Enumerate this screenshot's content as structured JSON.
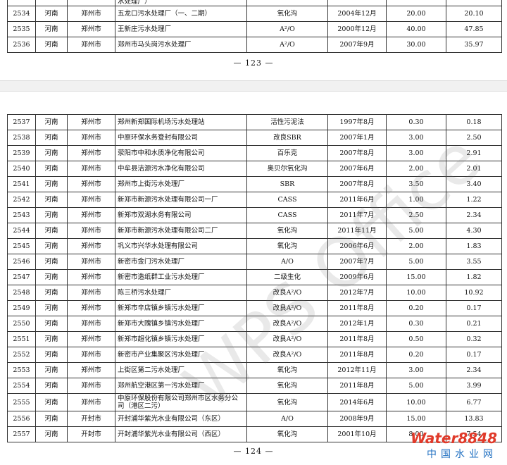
{
  "pages": [
    {
      "partial_row": {
        "name": "水处理厂）"
      },
      "rows": [
        [
          "2534",
          "河南",
          "郑州市",
          "五龙口污水处理厂（一、二期）",
          "氧化沟",
          "2004年12月",
          "20.00",
          "20.10"
        ],
        [
          "2535",
          "河南",
          "郑州市",
          "王新庄污水处理厂",
          "A²/O",
          "2000年12月",
          "40.00",
          "47.85"
        ],
        [
          "2536",
          "河南",
          "郑州市",
          "郑州市马头岗污水处理厂",
          "A²/O",
          "2007年9月",
          "30.00",
          "35.97"
        ]
      ],
      "page_number": "— 123 —"
    },
    {
      "rows": [
        [
          "2537",
          "河南",
          "郑州市",
          "郑州新郑国际机场污水处理站",
          "活性污泥法",
          "1997年8月",
          "0.30",
          "0.18"
        ],
        [
          "2538",
          "河南",
          "郑州市",
          "中原环保水务登封有限公司",
          "改良SBR",
          "2007年1月",
          "3.00",
          "2.50"
        ],
        [
          "2539",
          "河南",
          "郑州市",
          "荥阳市中和水质净化有限公司",
          "百乐克",
          "2007年8月",
          "3.00",
          "2.91"
        ],
        [
          "2540",
          "河南",
          "郑州市",
          "中牟县洁源污水净化有限公司",
          "奥贝尔氧化沟",
          "2007年6月",
          "2.00",
          "2.01"
        ],
        [
          "2541",
          "河南",
          "郑州市",
          "郑州市上街污水处理厂",
          "SBR",
          "2007年8月",
          "3.50",
          "3.40"
        ],
        [
          "2542",
          "河南",
          "郑州市",
          "新郑市新源污水处理有限公司一厂",
          "CASS",
          "2011年6月",
          "1.00",
          "1.22"
        ],
        [
          "2543",
          "河南",
          "郑州市",
          "新郑市双湖水务有限公司",
          "CASS",
          "2011年7月",
          "2.50",
          "2.34"
        ],
        [
          "2544",
          "河南",
          "郑州市",
          "新郑市新源污水处理有限公司二厂",
          "氧化沟",
          "2011年11月",
          "5.00",
          "4.30"
        ],
        [
          "2545",
          "河南",
          "郑州市",
          "巩义市兴华水处理有限公司",
          "氧化沟",
          "2006年6月",
          "2.00",
          "1.83"
        ],
        [
          "2546",
          "河南",
          "郑州市",
          "新密市金门污水处理厂",
          "A/O",
          "2007年7月",
          "5.00",
          "3.55"
        ],
        [
          "2547",
          "河南",
          "郑州市",
          "新密市造纸群工业污水处理厂",
          "二级生化",
          "2009年6月",
          "15.00",
          "1.82"
        ],
        [
          "2548",
          "河南",
          "郑州市",
          "陈三桥污水处理厂",
          "改良A²/O",
          "2012年7月",
          "10.00",
          "10.92"
        ],
        [
          "2549",
          "河南",
          "郑州市",
          "新郑市辛店镇乡镇污水处理厂",
          "改良A²/O",
          "2011年8月",
          "0.20",
          "0.17"
        ],
        [
          "2550",
          "河南",
          "郑州市",
          "新郑市大隗镇乡镇污水处理厂",
          "改良A²/O",
          "2012年1月",
          "0.30",
          "0.21"
        ],
        [
          "2551",
          "河南",
          "郑州市",
          "新郑市超化镇乡镇污水处理厂",
          "改良A²/O",
          "2011年8月",
          "0.50",
          "0.32"
        ],
        [
          "2552",
          "河南",
          "郑州市",
          "新密市产业集聚区污水处理厂",
          "改良A²/O",
          "2011年8月",
          "0.20",
          "0.17"
        ],
        [
          "2553",
          "河南",
          "郑州市",
          "上街区第二污水处理厂",
          "氧化沟",
          "2012年11月",
          "3.00",
          "2.34"
        ],
        [
          "2554",
          "河南",
          "郑州市",
          "郑州航空港区第一污水处理厂",
          "氧化沟",
          "2011年8月",
          "5.00",
          "3.99"
        ],
        [
          "2555",
          "河南",
          "郑州市",
          "中原环保股份有限公司郑州市区水务分公司（港区二污）",
          "氧化沟",
          "2014年6月",
          "10.00",
          "6.77"
        ],
        [
          "2556",
          "河南",
          "开封市",
          "开封浦华紫光水业有限公司（东区）",
          "A/O",
          "2008年9月",
          "15.00",
          "13.83"
        ],
        [
          "2557",
          "河南",
          "开封市",
          "开封浦华紫光水业有限公司（西区）",
          "氧化沟",
          "2001年10月",
          "8.00",
          "7.54"
        ]
      ],
      "page_number": "— 124 —"
    }
  ],
  "watermark": "WPS Office",
  "logo": {
    "brand": "Water8848",
    "site": "中国水业网"
  }
}
